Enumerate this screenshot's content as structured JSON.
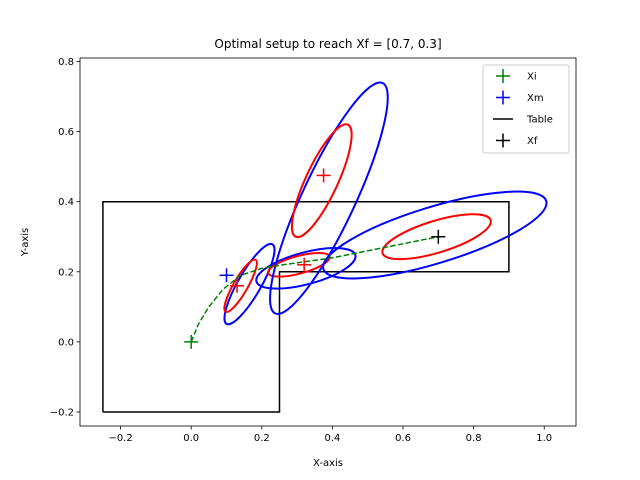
{
  "chart_data": {
    "type": "scatter",
    "title": "Optimal setup to reach Xf = [0.7, 0.3]",
    "xlabel": "X-axis",
    "ylabel": "Y-axis",
    "xlim": [
      -0.315,
      1.09
    ],
    "ylim": [
      -0.24,
      0.81
    ],
    "xticks": [
      -0.2,
      0.0,
      0.2,
      0.4,
      0.6,
      0.8,
      1.0
    ],
    "yticks": [
      -0.2,
      0.0,
      0.2,
      0.4,
      0.6,
      0.8
    ],
    "xtick_labels": [
      "−0.2",
      "0.0",
      "0.2",
      "0.4",
      "0.6",
      "0.8",
      "1.0"
    ],
    "ytick_labels": [
      "−0.2",
      "0.0",
      "0.2",
      "0.4",
      "0.6",
      "0.8"
    ],
    "grid": false,
    "legend_position": "top-right",
    "legend": [
      {
        "label": "Xi",
        "color": "#008000",
        "marker": "plus"
      },
      {
        "label": "Xm",
        "color": "#0000ff",
        "marker": "plus"
      },
      {
        "label": "Table",
        "color": "#000000",
        "marker": "line"
      },
      {
        "label": "Xf",
        "color": "#000000",
        "marker": "plus"
      }
    ],
    "table": {
      "color": "#000000",
      "polygon": [
        [
          -0.25,
          -0.2
        ],
        [
          -0.25,
          0.4
        ],
        [
          0.9,
          0.4
        ],
        [
          0.9,
          0.2
        ],
        [
          0.25,
          0.2
        ],
        [
          0.25,
          -0.2
        ],
        [
          -0.25,
          -0.2
        ]
      ]
    },
    "points": {
      "Xi": {
        "x": 0.0,
        "y": 0.0,
        "color": "#008000"
      },
      "Xm": {
        "x": 0.1,
        "y": 0.19,
        "color": "#0000ff"
      },
      "Xf": {
        "x": 0.7,
        "y": 0.3,
        "color": "#000000"
      }
    },
    "trajectory": {
      "color": "#008000",
      "style": "dashed",
      "x": [
        0.0,
        0.02,
        0.05,
        0.09,
        0.14,
        0.2,
        0.26,
        0.33,
        0.4,
        0.5,
        0.6,
        0.7
      ],
      "y": [
        0.0,
        0.05,
        0.1,
        0.15,
        0.19,
        0.21,
        0.22,
        0.23,
        0.24,
        0.26,
        0.28,
        0.3
      ]
    },
    "markers": [
      {
        "name": "inner-marker-1",
        "x": 0.13,
        "y": 0.16,
        "color": "#ff0000"
      },
      {
        "name": "inner-marker-2",
        "x": 0.32,
        "y": 0.22,
        "color": "#ff0000"
      },
      {
        "name": "inner-marker-3",
        "x": 0.375,
        "y": 0.475,
        "color": "#ff0000"
      }
    ],
    "ellipses": [
      {
        "name": "outer-ellipse-1",
        "cx": 0.165,
        "cy": 0.165,
        "w": 0.065,
        "h": 0.26,
        "angle": 30,
        "color": "#0000ff"
      },
      {
        "name": "inner-ellipse-1",
        "cx": 0.14,
        "cy": 0.16,
        "w": 0.04,
        "h": 0.17,
        "angle": 30,
        "color": "#ff0000"
      },
      {
        "name": "outer-ellipse-2",
        "cx": 0.325,
        "cy": 0.21,
        "w": 0.09,
        "h": 0.29,
        "angle": 75,
        "color": "#0000ff"
      },
      {
        "name": "inner-ellipse-2",
        "cx": 0.305,
        "cy": 0.22,
        "w": 0.05,
        "h": 0.18,
        "angle": 75,
        "color": "#ff0000"
      },
      {
        "name": "outer-ellipse-3",
        "cx": 0.39,
        "cy": 0.41,
        "w": 0.15,
        "h": 0.72,
        "angle": 25,
        "color": "#0000ff"
      },
      {
        "name": "inner-ellipse-3",
        "cx": 0.37,
        "cy": 0.46,
        "w": 0.09,
        "h": 0.35,
        "angle": 25,
        "color": "#ff0000"
      },
      {
        "name": "outer-ellipse-4",
        "cx": 0.69,
        "cy": 0.305,
        "w": 0.16,
        "h": 0.66,
        "angle": 73,
        "color": "#0000ff"
      },
      {
        "name": "inner-ellipse-4",
        "cx": 0.695,
        "cy": 0.3,
        "w": 0.09,
        "h": 0.32,
        "angle": 73,
        "color": "#ff0000"
      }
    ]
  }
}
